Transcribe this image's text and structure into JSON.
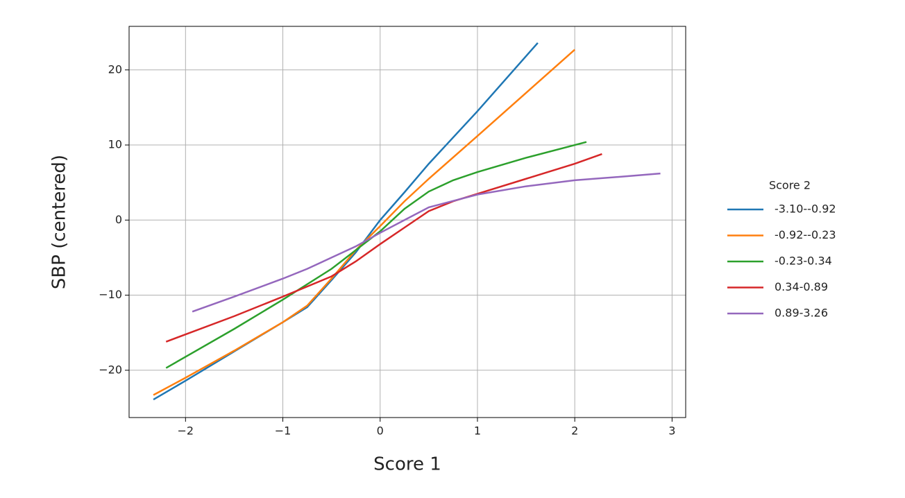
{
  "chart_data": {
    "type": "line",
    "xlabel": "Score 1",
    "ylabel": "SBP (centered)",
    "legend_title": "Score 2",
    "legend_position": "right",
    "grid": true,
    "xlim": [
      -2.58,
      3.14
    ],
    "xticks": [
      {
        "value": -2,
        "label": "−2"
      },
      {
        "value": -1,
        "label": "−1"
      },
      0,
      1,
      2,
      3
    ],
    "ylim": [
      -26.3,
      25.8
    ],
    "yticks": [
      {
        "value": -20,
        "label": "−20"
      },
      {
        "value": -10,
        "label": "−10"
      },
      0,
      10,
      20
    ],
    "series": [
      {
        "name": "-3.10--0.92",
        "color": "#1f77b4",
        "x": [
          -2.33,
          -2,
          -1.5,
          -1,
          -0.75,
          -0.5,
          -0.25,
          0,
          0.25,
          0.5,
          1,
          1.62
        ],
        "values": [
          -23.9,
          -21.4,
          -17.5,
          -13.6,
          -11.6,
          -8,
          -4.3,
          0,
          3.7,
          7.5,
          14.5,
          23.6
        ]
      },
      {
        "name": "-0.92--0.23",
        "color": "#ff7f0e",
        "x": [
          -2.33,
          -2,
          -1.5,
          -1,
          -0.75,
          -0.5,
          -0.25,
          0,
          0.25,
          0.5,
          1,
          2
        ],
        "values": [
          -23.3,
          -21,
          -17.4,
          -13.6,
          -11.4,
          -7.8,
          -4,
          -0.8,
          2.5,
          5.5,
          11.2,
          22.7
        ]
      },
      {
        "name": "-0.23-0.34",
        "color": "#2ca02c",
        "x": [
          -2.2,
          -1.5,
          -1,
          -0.5,
          0,
          0.25,
          0.5,
          0.75,
          1,
          1.5,
          2.12
        ],
        "values": [
          -19.7,
          -14.5,
          -10.6,
          -6.5,
          -1.5,
          1.5,
          3.8,
          5.3,
          6.4,
          8.3,
          10.4
        ]
      },
      {
        "name": "0.34-0.89",
        "color": "#d62728",
        "x": [
          -2.2,
          -1.5,
          -1,
          -0.5,
          -0.25,
          0,
          0.25,
          0.5,
          0.75,
          1,
          1.5,
          2,
          2.28
        ],
        "values": [
          -16.2,
          -12.8,
          -10.2,
          -7.5,
          -5.5,
          -3.2,
          -1,
          1.2,
          2.5,
          3.5,
          5.5,
          7.5,
          8.8
        ]
      },
      {
        "name": "0.89-3.26",
        "color": "#9467bd",
        "x": [
          -1.93,
          -1.5,
          -1,
          -0.75,
          -0.5,
          -0.25,
          0,
          0.25,
          0.5,
          1,
          1.5,
          2,
          2.5,
          2.88
        ],
        "values": [
          -12.2,
          -10.2,
          -7.8,
          -6.5,
          -5,
          -3.5,
          -1.7,
          0,
          1.7,
          3.4,
          4.5,
          5.3,
          5.8,
          6.2
        ]
      }
    ]
  }
}
